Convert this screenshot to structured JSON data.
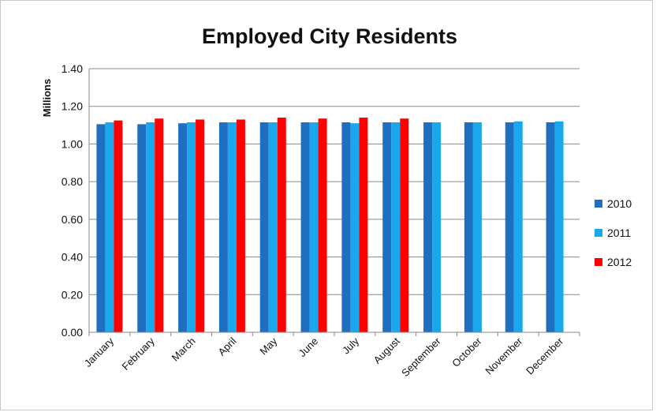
{
  "chart_data": {
    "type": "bar",
    "title": "Employed City Residents",
    "xlabel": "",
    "ylabel": "Millions",
    "ylim": [
      0,
      1.4
    ],
    "yticks": [
      "0.00",
      "0.20",
      "0.40",
      "0.60",
      "0.80",
      "1.00",
      "1.20",
      "1.40"
    ],
    "grid": "horizontal",
    "legend_position": "right",
    "categories": [
      "January",
      "February",
      "March",
      "April",
      "May",
      "June",
      "July",
      "August",
      "September",
      "October",
      "November",
      "December"
    ],
    "series": [
      {
        "name": "2010",
        "color": "#1f6fc1",
        "values": [
          1.105,
          1.105,
          1.11,
          1.115,
          1.115,
          1.115,
          1.115,
          1.115,
          1.115,
          1.115,
          1.115,
          1.115
        ]
      },
      {
        "name": "2011",
        "color": "#1aa7ec",
        "values": [
          1.115,
          1.115,
          1.115,
          1.115,
          1.115,
          1.115,
          1.11,
          1.115,
          1.115,
          1.115,
          1.12,
          1.12
        ]
      },
      {
        "name": "2012",
        "color": "#ff0000",
        "values": [
          1.125,
          1.135,
          1.13,
          1.13,
          1.14,
          1.135,
          1.14,
          1.135,
          null,
          null,
          null,
          null
        ]
      }
    ]
  }
}
